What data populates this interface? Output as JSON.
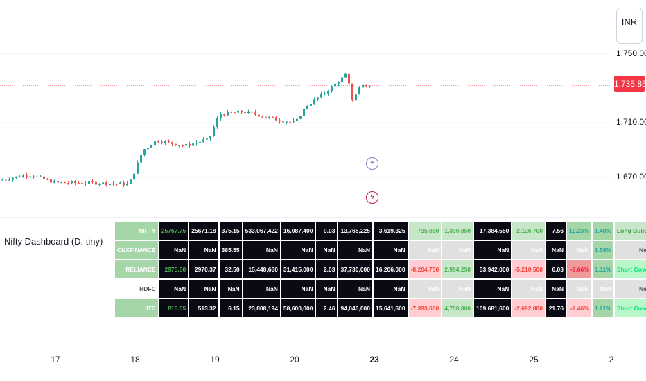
{
  "currency": "INR",
  "y_axis": {
    "labels": [
      "1,750.00",
      "1,710.00",
      "1,670.00"
    ]
  },
  "last_price": "1,735.85",
  "x_axis": {
    "labels": [
      "17",
      "18",
      "19",
      "20",
      "23",
      "24",
      "25",
      "2"
    ]
  },
  "indicator": {
    "title": "Nifty Dashboard (D, tiny)"
  },
  "colors": {
    "up": "#26a69a",
    "down": "#ef5350",
    "last_price_bg": "#f23645",
    "dark_cell": "#0a0a14"
  },
  "event_icons": [
    "star-icon",
    "lightning-icon"
  ],
  "dashboard": {
    "rows": [
      {
        "symbol": "NIFTY",
        "c1": "25767.75",
        "c2": "25671.18",
        "c3": "375.15",
        "c4": "533,067,422",
        "c5": "16,087,400",
        "c6": "0.03",
        "c7": "13,765,225",
        "c8": "3,619,325",
        "c9": "735,850",
        "c10": "1,390,850",
        "c11": "17,384,550",
        "c12": "2,126,700",
        "c13": "7.56",
        "c14": "12.23%",
        "c15": "1.48%",
        "status": "Long Buildup"
      },
      {
        "symbol": "CNXFINANCE",
        "c1": "NaN",
        "c2": "NaN",
        "c3": "385.55",
        "c4": "NaN",
        "c5": "NaN",
        "c6": "NaN",
        "c7": "NaN",
        "c8": "NaN",
        "c9": "NaN",
        "c10": "NaN",
        "c11": "NaN",
        "c12": "NaN",
        "c13": "NaN",
        "c14": "NaN",
        "c15": "1.58%",
        "status": "Neutral"
      },
      {
        "symbol": "RELIANCE",
        "c1": "2975.50",
        "c2": "2970.37",
        "c3": "32.50",
        "c4": "15,448,660",
        "c5": "31,415,000",
        "c6": "2.03",
        "c7": "37,730,000",
        "c8": "16,206,000",
        "c9": "-8,204,750",
        "c10": "2,994,250",
        "c11": "53,942,000",
        "c12": "-5,210,500",
        "c13": "6.03",
        "c14": "-9.66%",
        "c15": "1.11%",
        "status": "Short Covering"
      },
      {
        "symbol": "HDFC",
        "c1": "NaN",
        "c2": "NaN",
        "c3": "NaN",
        "c4": "NaN",
        "c5": "NaN",
        "c6": "NaN",
        "c7": "NaN",
        "c8": "NaN",
        "c9": "NaN",
        "c10": "NaN",
        "c11": "NaN",
        "c12": "NaN",
        "c13": "NaN",
        "c14": "NaN",
        "c15": "NaN",
        "status": "Neutral"
      },
      {
        "symbol": "ITC",
        "c1": "815.05",
        "c2": "513.32",
        "c3": "6.15",
        "c4": "23,808,194",
        "c5": "58,600,000",
        "c6": "2.46",
        "c7": "94,040,000",
        "c8": "15,641,600",
        "c9": "-7,393,600",
        "c10": "4,700,800",
        "c11": "109,681,600",
        "c12": "-2,692,800",
        "c13": "21.76",
        "c14": "-2.46%",
        "c15": "1.21%",
        "status": "Short Covering"
      }
    ]
  }
}
